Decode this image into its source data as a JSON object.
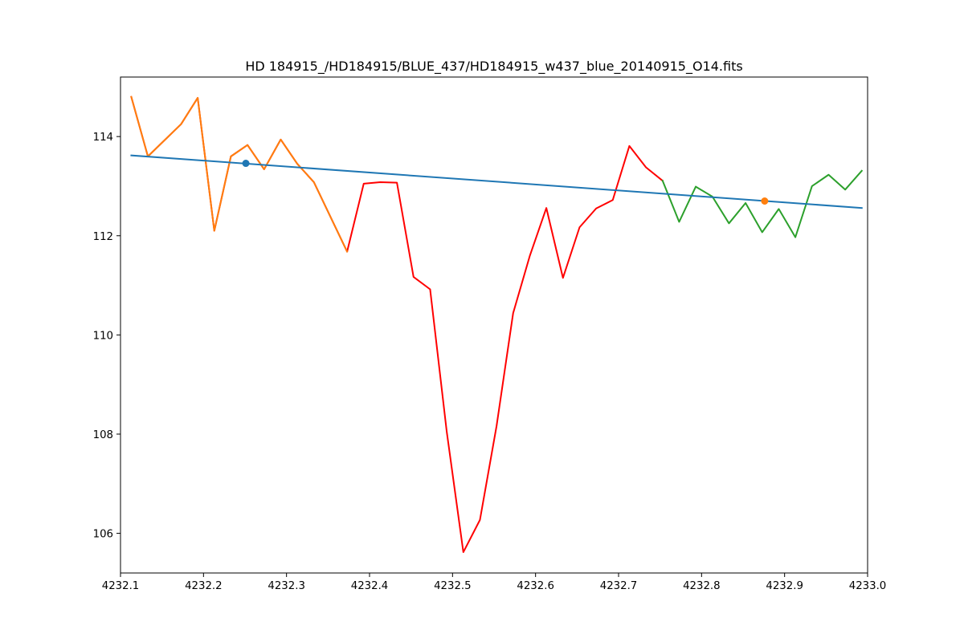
{
  "chart_data": {
    "type": "line",
    "title": "HD 184915_/HD184915/BLUE_437/HD184915_w437_blue_20140915_O14.fits",
    "xlabel": "",
    "ylabel": "",
    "xlim": [
      4232.1,
      4233.0
    ],
    "ylim": [
      105.2,
      115.2
    ],
    "grid": false,
    "x_ticks": [
      {
        "value": 4232.1,
        "label": "4232.1"
      },
      {
        "value": 4232.2,
        "label": "4232.2"
      },
      {
        "value": 4232.3,
        "label": "4232.3"
      },
      {
        "value": 4232.4,
        "label": "4232.4"
      },
      {
        "value": 4232.5,
        "label": "4232.5"
      },
      {
        "value": 4232.6,
        "label": "4232.6"
      },
      {
        "value": 4232.7,
        "label": "4232.7"
      },
      {
        "value": 4232.8,
        "label": "4232.8"
      },
      {
        "value": 4232.9,
        "label": "4232.9"
      },
      {
        "value": 4233.0,
        "label": "4233.0"
      }
    ],
    "y_ticks": [
      {
        "value": 106,
        "label": "106"
      },
      {
        "value": 108,
        "label": "108"
      },
      {
        "value": 110,
        "label": "110"
      },
      {
        "value": 112,
        "label": "112"
      },
      {
        "value": 114,
        "label": "114"
      }
    ],
    "series": [
      {
        "color": "#ff0000",
        "kind": "line",
        "x": [
          4232.113,
          4232.133,
          4232.173,
          4232.193,
          4232.213,
          4232.233,
          4232.253,
          4232.273,
          4232.293,
          4232.313,
          4232.333,
          4232.353,
          4232.373,
          4232.393,
          4232.413,
          4232.433,
          4232.453,
          4232.473,
          4232.493,
          4232.513,
          4232.533,
          4232.553,
          4232.573,
          4232.593,
          4232.613,
          4232.633,
          4232.653,
          4232.673,
          4232.693,
          4232.713,
          4232.733,
          4232.753
        ],
        "y": [
          114.8,
          113.6,
          114.25,
          114.78,
          112.1,
          113.6,
          113.83,
          113.34,
          113.94,
          113.45,
          113.08,
          112.38,
          111.68,
          113.05,
          113.08,
          113.07,
          111.17,
          110.92,
          108.05,
          105.62,
          106.27,
          108.16,
          110.44,
          111.59,
          112.56,
          111.15,
          112.17,
          112.55,
          112.72,
          113.81,
          113.38,
          113.11
        ]
      },
      {
        "color": "#2ca02c",
        "kind": "line",
        "x": [
          4232.753,
          4232.773,
          4232.793,
          4232.813,
          4232.833,
          4232.853,
          4232.873,
          4232.893,
          4232.913,
          4232.933,
          4232.953,
          4232.973,
          4232.993
        ],
        "y": [
          113.11,
          112.28,
          112.99,
          112.79,
          112.25,
          112.66,
          112.07,
          112.54,
          111.97,
          113.0,
          113.23,
          112.93,
          113.31
        ]
      },
      {
        "color": "#ff7f0e",
        "kind": "line",
        "x": [
          4232.113,
          4232.133,
          4232.173,
          4232.193,
          4232.213,
          4232.233,
          4232.253,
          4232.273,
          4232.293,
          4232.313,
          4232.333,
          4232.353,
          4232.373
        ],
        "y": [
          114.8,
          113.6,
          114.25,
          114.78,
          112.1,
          113.6,
          113.83,
          113.34,
          113.94,
          113.45,
          113.08,
          112.38,
          111.68
        ]
      },
      {
        "color": "#1f77b4",
        "kind": "line",
        "x": [
          4232.113,
          4232.993
        ],
        "y": [
          113.62,
          112.56
        ]
      },
      {
        "color": "#1f77b4",
        "kind": "scatter",
        "x": [
          4232.251
        ],
        "y": [
          113.46
        ]
      },
      {
        "color": "#ff7f0e",
        "kind": "scatter",
        "x": [
          4232.876
        ],
        "y": [
          112.7
        ]
      }
    ]
  }
}
